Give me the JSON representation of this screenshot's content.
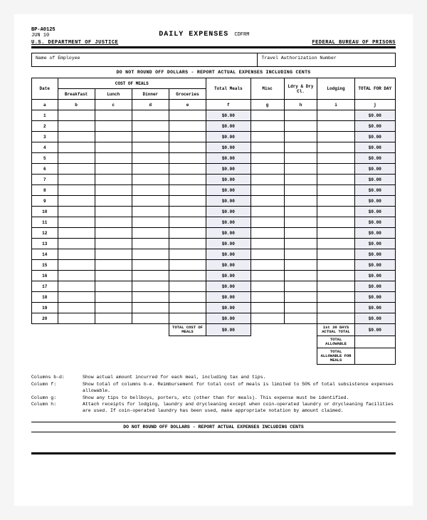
{
  "header": {
    "form_id": "BP-A0125",
    "date": "JUN 10",
    "title": "DAILY EXPENSES",
    "title_suffix": "CDFRM",
    "dept_left": "U.S. DEPARTMENT OF JUSTICE",
    "dept_right": "FEDERAL BUREAU OF PRISONS"
  },
  "info": {
    "employee_label": "Name of Employee",
    "auth_label": "Travel Authorization Number"
  },
  "banner": "DO NOT ROUND OFF DOLLARS - REPORT ACTUAL EXPENSES INCLUDING CENTS",
  "cols": {
    "meals_group": "COST OF MEALS",
    "date": "Date",
    "breakfast": "Breakfast",
    "lunch": "Lunch",
    "dinner": "Dinner",
    "groceries": "Groceries",
    "total_meals": "Total Meals",
    "misc": "Misc",
    "ldry": "Ldry & Dry Cl.",
    "lodging": "Lodging",
    "total_day": "TOTAL FOR DAY"
  },
  "letters": {
    "a": "a",
    "b": "b",
    "c": "c",
    "d": "d",
    "e": "e",
    "f": "f",
    "g": "g",
    "h": "h",
    "i": "i",
    "j": "j"
  },
  "rows": [
    {
      "n": "1",
      "tm": "$0.00",
      "td": "$0.00"
    },
    {
      "n": "2",
      "tm": "$0.00",
      "td": "$0.00"
    },
    {
      "n": "3",
      "tm": "$0.00",
      "td": "$0.00"
    },
    {
      "n": "4",
      "tm": "$0.00",
      "td": "$0.00"
    },
    {
      "n": "5",
      "tm": "$0.00",
      "td": "$0.00"
    },
    {
      "n": "6",
      "tm": "$0.00",
      "td": "$0.00"
    },
    {
      "n": "7",
      "tm": "$0.00",
      "td": "$0.00"
    },
    {
      "n": "8",
      "tm": "$0.00",
      "td": "$0.00"
    },
    {
      "n": "9",
      "tm": "$0.00",
      "td": "$0.00"
    },
    {
      "n": "10",
      "tm": "$0.00",
      "td": "$0.00"
    },
    {
      "n": "11",
      "tm": "$0.00",
      "td": "$0.00"
    },
    {
      "n": "12",
      "tm": "$0.00",
      "td": "$0.00"
    },
    {
      "n": "13",
      "tm": "$0.00",
      "td": "$0.00"
    },
    {
      "n": "14",
      "tm": "$0.00",
      "td": "$0.00"
    },
    {
      "n": "15",
      "tm": "$0.00",
      "td": "$0.00"
    },
    {
      "n": "16",
      "tm": "$0.00",
      "td": "$0.00"
    },
    {
      "n": "17",
      "tm": "$0.00",
      "td": "$0.00"
    },
    {
      "n": "18",
      "tm": "$0.00",
      "td": "$0.00"
    },
    {
      "n": "19",
      "tm": "$0.00",
      "td": "$0.00"
    },
    {
      "n": "20",
      "tm": "$0.00",
      "td": "$0.00"
    }
  ],
  "summary": {
    "total_cost_meals_label": "TOTAL COST OF MEALS",
    "total_cost_meals": "$0.00",
    "first30_label": "1st 30 DAYS ACTUAL TOTAL",
    "first30": "$0.00",
    "allow_label": "TOTAL ALLOWABLE",
    "allow_meals_label": "TOTAL ALLOWABLE FOR MEALS"
  },
  "notes": {
    "bd_k": "Columns b-d:",
    "bd_v": "Show actual amount incurred for each meal, including tax and tips.",
    "f_k": "Column   f:",
    "f_v": "Show total of columns b-e.  Reimbursement for total cost of meals is limited to 50% of total subsistence expenses allowable.",
    "g_k": "Column   g:",
    "g_v": "Show any tips to bellboys, porters, etc (other than for meals). This expense must be identified.",
    "h_k": "Column   h:",
    "h_v": "Attach receipts for lodging, laundry and drycleaning except when coin-operated laundry or drycleaning facilities are used.  If coin-operated laundry has been used, make appropriate notation by amount claimed."
  },
  "banner2": "DO NOT ROUND OFF DOLLARS - REPORT ACTUAL EXPENSES INCLUDING CENTS"
}
